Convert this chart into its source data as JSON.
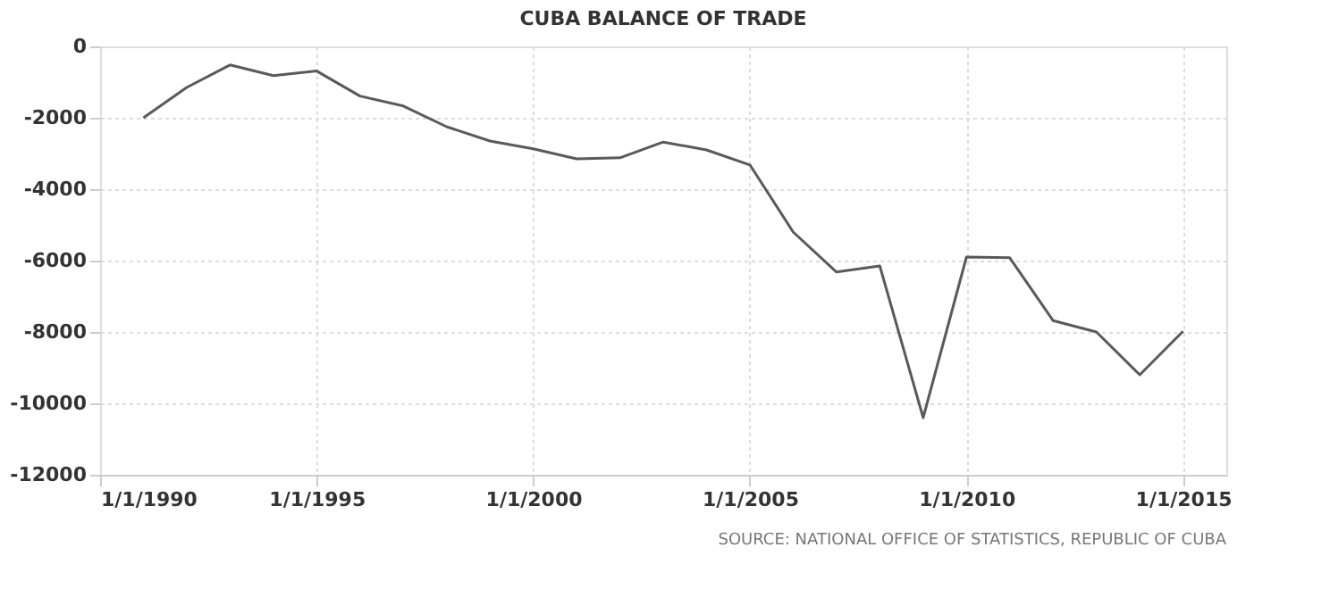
{
  "chart_data": {
    "type": "line",
    "title": "CUBA BALANCE OF TRADE",
    "x": [
      "1991-01-01",
      "1992-01-01",
      "1993-01-01",
      "1994-01-01",
      "1995-01-01",
      "1996-01-01",
      "1997-01-01",
      "1998-01-01",
      "1999-01-01",
      "2000-01-01",
      "2001-01-01",
      "2002-01-01",
      "2003-01-01",
      "2004-01-01",
      "2005-01-01",
      "2006-01-01",
      "2007-01-01",
      "2008-01-01",
      "2009-01-01",
      "2010-01-01",
      "2011-01-01",
      "2012-01-01",
      "2013-01-01",
      "2014-01-01",
      "2015-01-01"
    ],
    "series": [
      {
        "color": "#5a5a5a",
        "values": [
          -2000,
          -1150,
          -520,
          -820,
          -690,
          -1390,
          -1670,
          -2250,
          -2650,
          -2870,
          -3150,
          -3120,
          -2680,
          -2900,
          -3320,
          -5200,
          -6320,
          -6150,
          -10400,
          -5900,
          -5920,
          -7680,
          -8000,
          -9200,
          -7980
        ]
      }
    ],
    "xlim": [
      "1990-01-01",
      "2016-01-01"
    ],
    "xticks": [
      {
        "value": "1990-01-01",
        "label": "1/1/1990"
      },
      {
        "value": "1995-01-01",
        "label": "1/1/1995"
      },
      {
        "value": "2000-01-01",
        "label": "1/1/2000"
      },
      {
        "value": "2005-01-01",
        "label": "1/1/2005"
      },
      {
        "value": "2010-01-01",
        "label": "1/1/2010"
      },
      {
        "value": "2015-01-01",
        "label": "1/1/2015"
      }
    ],
    "ylim": [
      -12000,
      0
    ],
    "yticks": [
      -12000,
      -10000,
      -8000,
      -6000,
      -4000,
      -2000,
      0
    ],
    "grid": true,
    "legend": false,
    "marker": "none",
    "line_style": "solid",
    "annotations": [
      "SOURCE: NATIONAL OFFICE OF STATISTICS, REPUBLIC OF CUBA"
    ]
  }
}
